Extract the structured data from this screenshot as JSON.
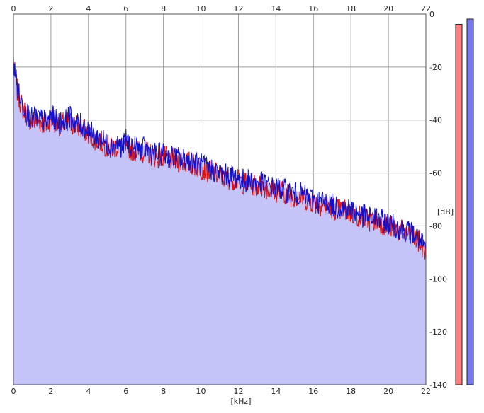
{
  "chart_data": {
    "type": "area",
    "xlabel": "[kHz]",
    "ylabel": "[dB]",
    "xlim": [
      0,
      22
    ],
    "ylim": [
      -140,
      0
    ],
    "x_ticks": [
      "0",
      "2",
      "4",
      "6",
      "8",
      "10",
      "12",
      "14",
      "16",
      "18",
      "20",
      "22"
    ],
    "y_ticks": [
      "0",
      "-20",
      "-40",
      "-60",
      "-80",
      "-100",
      "-120",
      "-140"
    ],
    "grid": true,
    "series": [
      {
        "color": "#e01010",
        "x": [
          0,
          0.1,
          0.2,
          0.4,
          0.6,
          0.8,
          1,
          1.2,
          1.5,
          1.8,
          2,
          2.2,
          2.5,
          2.8,
          3,
          3.3,
          3.6,
          4,
          4.3,
          4.6,
          5,
          5.2,
          5.5,
          5.8,
          6,
          6.3,
          6.6,
          7,
          7.3,
          7.6,
          8,
          8.3,
          8.6,
          9,
          9.3,
          9.6,
          10,
          10.3,
          10.6,
          11,
          11.3,
          11.6,
          12,
          12.3,
          12.6,
          13,
          13.3,
          13.6,
          14,
          14.3,
          14.6,
          15,
          15.3,
          15.6,
          16,
          16.3,
          16.6,
          17,
          17.3,
          17.6,
          18,
          18.3,
          18.6,
          19,
          19.3,
          19.6,
          20,
          20.3,
          20.6,
          21,
          21.3,
          21.6,
          21.8,
          22
        ],
        "y": [
          -20,
          -22,
          -28,
          -33,
          -36,
          -38,
          -40,
          -39,
          -40,
          -41,
          -38,
          -40,
          -41,
          -40,
          -40,
          -41,
          -42,
          -44,
          -46,
          -47,
          -49,
          -50,
          -49,
          -50,
          -49,
          -50,
          -51,
          -51,
          -52,
          -53,
          -53,
          -54,
          -54,
          -55,
          -55,
          -56,
          -57,
          -58,
          -59,
          -60,
          -61,
          -61,
          -62,
          -63,
          -63,
          -64,
          -64,
          -65,
          -66,
          -66,
          -67,
          -68,
          -68,
          -69,
          -70,
          -71,
          -71,
          -72,
          -73,
          -73,
          -74,
          -75,
          -76,
          -77,
          -77,
          -78,
          -79,
          -80,
          -81,
          -82,
          -83,
          -85,
          -87,
          -89
        ]
      },
      {
        "color": "#1010d0",
        "x": [
          0,
          0.1,
          0.2,
          0.4,
          0.6,
          0.8,
          1,
          1.2,
          1.5,
          1.8,
          2,
          2.2,
          2.5,
          2.8,
          3,
          3.3,
          3.6,
          4,
          4.3,
          4.6,
          5,
          5.2,
          5.5,
          5.8,
          6,
          6.3,
          6.6,
          7,
          7.3,
          7.6,
          8,
          8.3,
          8.6,
          9,
          9.3,
          9.6,
          10,
          10.3,
          10.6,
          11,
          11.3,
          11.6,
          12,
          12.3,
          12.6,
          13,
          13.3,
          13.6,
          14,
          14.3,
          14.6,
          15,
          15.3,
          15.6,
          16,
          16.3,
          16.6,
          17,
          17.3,
          17.6,
          18,
          18.3,
          18.6,
          19,
          19.3,
          19.6,
          20,
          20.3,
          20.6,
          21,
          21.3,
          21.6,
          21.8,
          22
        ],
        "y": [
          -18,
          -20,
          -27,
          -32,
          -35,
          -37,
          -39,
          -38,
          -39,
          -40,
          -37,
          -39,
          -40,
          -39,
          -38,
          -40,
          -41,
          -43,
          -45,
          -46,
          -48,
          -49,
          -48,
          -49,
          -47,
          -49,
          -50,
          -50,
          -51,
          -52,
          -52,
          -53,
          -53,
          -54,
          -54,
          -55,
          -56,
          -57,
          -58,
          -59,
          -60,
          -60,
          -61,
          -62,
          -62,
          -63,
          -63,
          -64,
          -65,
          -65,
          -66,
          -67,
          -67,
          -68,
          -69,
          -70,
          -70,
          -71,
          -72,
          -72,
          -73,
          -74,
          -75,
          -76,
          -76,
          -77,
          -78,
          -79,
          -80,
          -81,
          -82,
          -84,
          -86,
          -88
        ]
      }
    ],
    "fill_color": "#c4c4f8",
    "level_meters": [
      {
        "color": "#ff8080",
        "level_db": -2
      },
      {
        "color": "#7a7af0",
        "level_db": 0
      }
    ]
  }
}
